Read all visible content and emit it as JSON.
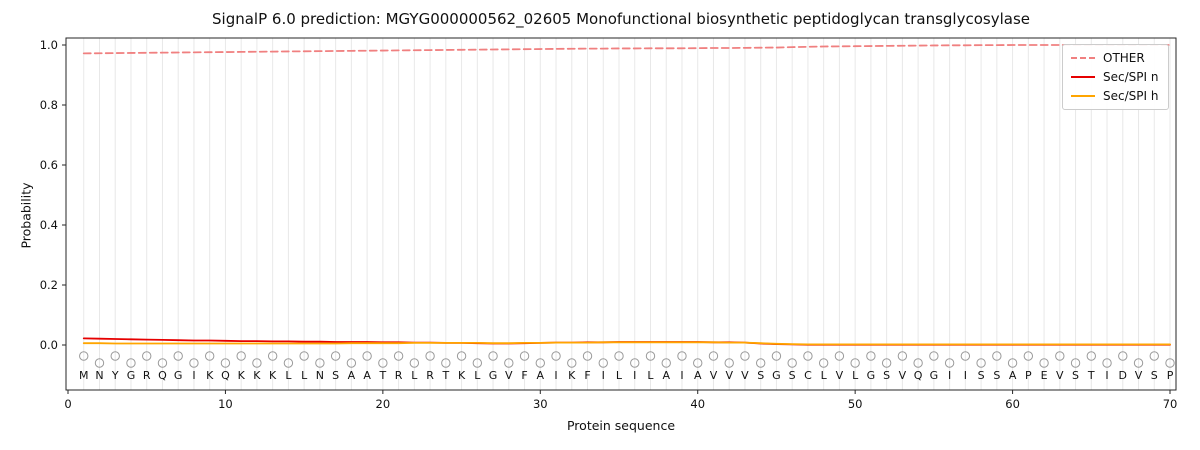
{
  "chart_data": {
    "type": "line",
    "title": "SignalP 6.0 prediction: MGYG000000562_02605 Monofunctional biosynthetic peptidoglycan transglycosylase",
    "xlabel": "Protein sequence",
    "ylabel": "Probability",
    "xticks": [
      0,
      10,
      20,
      30,
      40,
      50,
      60,
      70
    ],
    "yticks": [
      0.0,
      0.2,
      0.4,
      0.6,
      0.8,
      1.0
    ],
    "xlim": [
      -0.15,
      70.4
    ],
    "ylim": [
      -0.15,
      1.02
    ],
    "grid": "vertical-per-residue",
    "legend_position": "upper right",
    "sequence": "MNYGRQGIKQKKKLLNSAATRLRTKLGVFAIKFILILAIAVVVSGSCLVLGSVQGIISSAPEVSTIDVSP",
    "x": [
      1,
      2,
      3,
      4,
      5,
      6,
      7,
      8,
      9,
      10,
      11,
      12,
      13,
      14,
      15,
      16,
      17,
      18,
      19,
      20,
      21,
      22,
      23,
      24,
      25,
      26,
      27,
      28,
      29,
      30,
      31,
      32,
      33,
      34,
      35,
      36,
      37,
      38,
      39,
      40,
      41,
      42,
      43,
      44,
      45,
      46,
      47,
      48,
      49,
      50,
      51,
      52,
      53,
      54,
      55,
      56,
      57,
      58,
      59,
      60,
      61,
      62,
      63,
      64,
      65,
      66,
      67,
      68,
      69,
      70
    ],
    "series": [
      {
        "name": "OTHER",
        "color": "#f08080",
        "style": "dashed",
        "values": [
          0.972,
          0.9725,
          0.973,
          0.9735,
          0.974,
          0.9745,
          0.975,
          0.9755,
          0.976,
          0.9765,
          0.977,
          0.9775,
          0.978,
          0.9785,
          0.979,
          0.9795,
          0.98,
          0.9805,
          0.981,
          0.9815,
          0.982,
          0.9825,
          0.983,
          0.9835,
          0.984,
          0.9845,
          0.985,
          0.9855,
          0.986,
          0.9865,
          0.987,
          0.9875,
          0.988,
          0.988,
          0.9885,
          0.9885,
          0.989,
          0.989,
          0.989,
          0.9895,
          0.99,
          0.99,
          0.9905,
          0.991,
          0.9915,
          0.993,
          0.994,
          0.995,
          0.9955,
          0.996,
          0.9965,
          0.997,
          0.9975,
          0.998,
          0.9985,
          0.999,
          0.999,
          0.9995,
          0.9995,
          1.0,
          1.0,
          1.0,
          1.0,
          1.0,
          1.0,
          1.0,
          1.0,
          1.0,
          1.0,
          1.0
        ]
      },
      {
        "name": "Sec/SPI n",
        "color": "#e60000",
        "style": "solid",
        "values": [
          0.022,
          0.021,
          0.02,
          0.019,
          0.018,
          0.017,
          0.016,
          0.015,
          0.015,
          0.014,
          0.013,
          0.013,
          0.012,
          0.012,
          0.011,
          0.011,
          0.01,
          0.01,
          0.01,
          0.009,
          0.009,
          0.008,
          0.008,
          0.007,
          0.007,
          0.006,
          0.005,
          0.005,
          0.006,
          0.007,
          0.008,
          0.008,
          0.009,
          0.009,
          0.01,
          0.01,
          0.01,
          0.01,
          0.01,
          0.01,
          0.009,
          0.009,
          0.008,
          0.005,
          0.003,
          0.002,
          0.001,
          0.001,
          0.001,
          0.001,
          0.001,
          0.001,
          0.001,
          0.001,
          0.001,
          0.001,
          0.001,
          0.001,
          0.001,
          0.001,
          0.001,
          0.001,
          0.001,
          0.001,
          0.001,
          0.001,
          0.001,
          0.001,
          0.001,
          0.001
        ]
      },
      {
        "name": "Sec/SPI h",
        "color": "#ffa500",
        "style": "solid",
        "values": [
          0.006,
          0.006,
          0.005,
          0.005,
          0.005,
          0.005,
          0.005,
          0.005,
          0.005,
          0.005,
          0.005,
          0.005,
          0.005,
          0.005,
          0.005,
          0.005,
          0.005,
          0.006,
          0.006,
          0.006,
          0.006,
          0.007,
          0.007,
          0.007,
          0.007,
          0.007,
          0.006,
          0.006,
          0.007,
          0.007,
          0.008,
          0.008,
          0.008,
          0.009,
          0.009,
          0.009,
          0.009,
          0.009,
          0.009,
          0.009,
          0.009,
          0.008,
          0.008,
          0.006,
          0.004,
          0.003,
          0.002,
          0.002,
          0.002,
          0.002,
          0.002,
          0.002,
          0.002,
          0.002,
          0.002,
          0.002,
          0.002,
          0.002,
          0.002,
          0.002,
          0.002,
          0.002,
          0.002,
          0.002,
          0.002,
          0.002,
          0.002,
          0.002,
          0.002,
          0.002
        ]
      }
    ]
  }
}
